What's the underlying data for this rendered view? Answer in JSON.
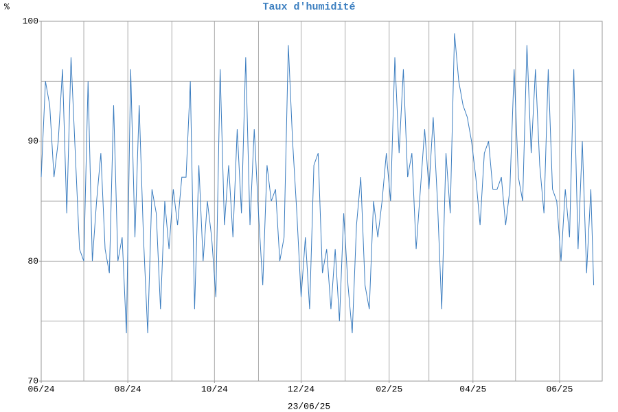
{
  "chart_data": {
    "type": "line",
    "title": "Taux d'humidité",
    "ylabel": "%",
    "xlabel": "23/06/25",
    "x": [
      0,
      3,
      6,
      9,
      12,
      15,
      18,
      21,
      24,
      27,
      30,
      33,
      36,
      39,
      42,
      45,
      48,
      51,
      54,
      57,
      60,
      63,
      66,
      69,
      72,
      75,
      78,
      81,
      84,
      87,
      90,
      93,
      96,
      99,
      102,
      105,
      108,
      111,
      114,
      117,
      120,
      123,
      126,
      129,
      132,
      135,
      138,
      141,
      144,
      147,
      150,
      153,
      156,
      159,
      162,
      165,
      168,
      171,
      174,
      177,
      180,
      183,
      186,
      189,
      192,
      195,
      198,
      201,
      204,
      207,
      210,
      213,
      216,
      219,
      222,
      225,
      228,
      231,
      234,
      237,
      240,
      243,
      246,
      249,
      252,
      255,
      258,
      261,
      264,
      267,
      270,
      273,
      276,
      279,
      282,
      285,
      288,
      291,
      294,
      297,
      300,
      303,
      306,
      309,
      312,
      315,
      318,
      321,
      324,
      327,
      330,
      333,
      336,
      339,
      342,
      345,
      348,
      351,
      354,
      357,
      360,
      363,
      366,
      369,
      372,
      375,
      378,
      381,
      384,
      387,
      389
    ],
    "series": [
      {
        "name": "Humidité",
        "color": "#3a7cbf",
        "values": [
          87,
          95,
          93,
          87,
          90,
          96,
          84,
          97,
          89,
          81,
          80,
          95,
          80,
          85,
          89,
          81,
          79,
          93,
          80,
          82,
          74,
          96,
          82,
          93,
          82,
          74,
          86,
          84,
          76,
          85,
          81,
          86,
          83,
          87,
          87,
          95,
          76,
          88,
          80,
          85,
          82,
          77,
          96,
          83,
          88,
          82,
          91,
          84,
          97,
          83,
          91,
          84,
          78,
          88,
          85,
          86,
          80,
          82,
          98,
          90,
          84,
          77,
          82,
          76,
          88,
          89,
          79,
          81,
          76,
          81,
          75,
          84,
          78,
          74,
          83,
          87,
          78,
          76,
          85,
          82,
          85,
          89,
          85,
          97,
          89,
          96,
          87,
          89,
          81,
          86,
          91,
          86,
          92,
          85,
          76,
          89,
          84,
          99,
          95,
          93,
          92,
          90,
          87,
          83,
          89,
          90,
          86,
          86,
          87,
          83,
          86,
          96,
          87,
          85,
          98,
          89,
          96,
          88,
          84,
          96,
          86,
          85,
          80,
          86,
          82,
          96,
          81,
          90,
          79,
          86,
          78
        ]
      }
    ],
    "xlim": [
      0,
      395
    ],
    "xticks": [
      {
        "value": 0,
        "label": "06/24"
      },
      {
        "value": 61,
        "label": "08/24"
      },
      {
        "value": 122,
        "label": "10/24"
      },
      {
        "value": 183,
        "label": "12/24"
      },
      {
        "value": 245,
        "label": "02/25"
      },
      {
        "value": 304,
        "label": "04/25"
      },
      {
        "value": 365,
        "label": "06/25"
      }
    ],
    "xgrid": [
      30,
      61,
      92,
      122,
      153,
      183,
      214,
      245,
      273,
      304,
      334,
      365
    ],
    "ylim": [
      70,
      100
    ],
    "yticks": [
      70,
      80,
      90,
      100
    ],
    "ygrid": [
      75,
      80,
      85,
      90,
      95
    ],
    "grid": true
  }
}
